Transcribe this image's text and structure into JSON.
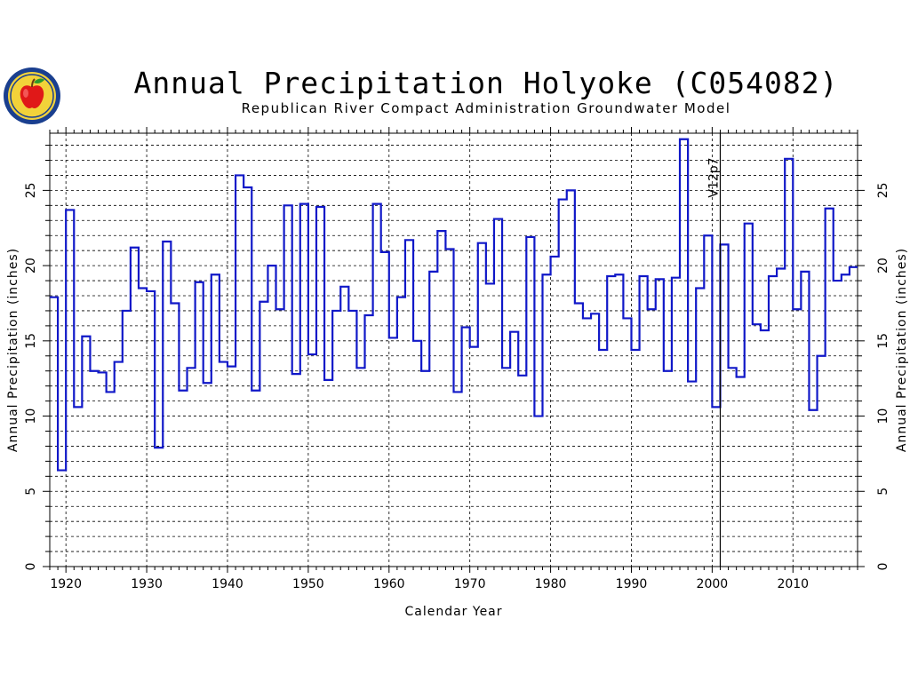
{
  "header": {
    "title": "Annual Precipitation Holyoke (C054082)",
    "subtitle": "Republican River Compact Administration Groundwater Model"
  },
  "logo": {
    "icon": "apple-seal-icon",
    "colors": {
      "ring": "#1a3f8f",
      "fill": "#f2d23a",
      "apple": "#e01818",
      "leaf": "#2a9a2a"
    }
  },
  "colors": {
    "series": "#1018c8",
    "grid": "#000000",
    "axis": "#000000"
  },
  "chart_data": {
    "type": "line",
    "step": true,
    "title": "Annual Precipitation Holyoke (C054082)",
    "subtitle": "Republican River Compact Administration Groundwater Model",
    "xlabel": "Calendar Year",
    "ylabel": "Annual Precipitation (inches)",
    "ylabel_right": "Annual Precipitation (inches)",
    "xlim": [
      1918,
      2018
    ],
    "ylim": [
      0,
      28.8
    ],
    "x_ticks": [
      1920,
      1930,
      1940,
      1950,
      1960,
      1970,
      1980,
      1990,
      2000,
      2010
    ],
    "y_ticks": [
      0,
      5,
      10,
      15,
      20,
      25
    ],
    "y_grid_step": 1,
    "grid": true,
    "annotation": {
      "text": "V12p7",
      "x": 2001
    },
    "series": [
      {
        "x": [
          1918,
          1919,
          1920,
          1921,
          1922,
          1923,
          1924,
          1925,
          1926,
          1927,
          1928,
          1929,
          1930,
          1931,
          1932,
          1933,
          1934,
          1935,
          1936,
          1937,
          1938,
          1939,
          1940,
          1941,
          1942,
          1943,
          1944,
          1945,
          1946,
          1947,
          1948,
          1949,
          1950,
          1951,
          1952,
          1953,
          1954,
          1955,
          1956,
          1957,
          1958,
          1959,
          1960,
          1961,
          1962,
          1963,
          1964,
          1965,
          1966,
          1967,
          1968,
          1969,
          1970,
          1971,
          1972,
          1973,
          1974,
          1975,
          1976,
          1977,
          1978,
          1979,
          1980,
          1981,
          1982,
          1983,
          1984,
          1985,
          1986,
          1987,
          1988,
          1989,
          1990,
          1991,
          1992,
          1993,
          1994,
          1995,
          1996,
          1997,
          1998,
          1999,
          2000,
          2001,
          2002,
          2003,
          2004,
          2005,
          2006,
          2007,
          2008,
          2009,
          2010,
          2011,
          2012,
          2013,
          2014,
          2015,
          2016,
          2017
        ],
        "values": [
          17.9,
          6.4,
          23.7,
          10.6,
          15.3,
          13.0,
          12.9,
          11.6,
          13.6,
          17.0,
          21.2,
          18.5,
          18.3,
          7.9,
          21.6,
          17.5,
          11.7,
          13.2,
          18.9,
          12.2,
          19.4,
          13.6,
          13.3,
          26.0,
          25.2,
          11.7,
          17.6,
          20.0,
          17.1,
          24.0,
          12.8,
          24.1,
          14.1,
          23.9,
          12.4,
          17.0,
          18.6,
          17.0,
          13.2,
          16.7,
          24.1,
          20.9,
          15.2,
          17.9,
          21.7,
          15.0,
          13.0,
          19.6,
          22.3,
          21.1,
          11.6,
          15.9,
          14.6,
          21.5,
          18.8,
          23.1,
          13.2,
          15.6,
          12.7,
          21.9,
          10.0,
          19.4,
          20.6,
          24.4,
          25.0,
          17.5,
          16.5,
          16.8,
          14.4,
          19.3,
          19.4,
          16.5,
          14.4,
          19.3,
          17.1,
          19.1,
          13.0,
          19.2,
          28.4,
          12.3,
          18.5,
          22.0,
          10.6,
          21.4,
          13.2,
          12.6,
          22.8,
          16.1,
          15.7,
          19.3,
          19.8,
          27.1,
          17.1,
          19.6,
          10.4,
          14.0,
          23.8,
          19.0,
          19.4,
          19.9
        ]
      }
    ]
  }
}
